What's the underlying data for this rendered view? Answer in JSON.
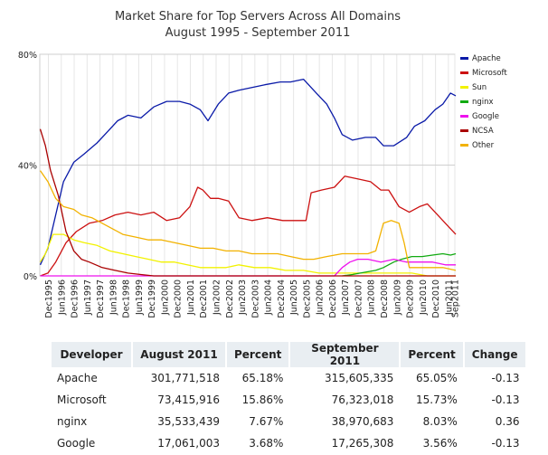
{
  "colors": {
    "Apache": "#0a1aa8",
    "Microsoft": "#cc1111",
    "Sun": "#f2f200",
    "nginx": "#11aa11",
    "Google": "#ee11ee",
    "NCSA": "#aa0000",
    "Other": "#f2b200",
    "grid": "#e6e6e6",
    "header_bg": "#e9eef2"
  },
  "chart_data": {
    "type": "line",
    "title": "Market Share for Top Servers Across All Domains",
    "subtitle": "August 1995 - September 2011",
    "x_ticks": [
      "Dec1995",
      "Jun1996",
      "Dec1996",
      "Jun1997",
      "Dec1997",
      "Jun1998",
      "Dec1998",
      "Jun1999",
      "Dec1999",
      "Jun2000",
      "Dec2000",
      "Jun2001",
      "Dec2001",
      "Jun2002",
      "Dec2002",
      "Jun2003",
      "Dec2003",
      "Jun2004",
      "Dec2004",
      "Jun2005",
      "Dec2005",
      "Jun2006",
      "Dec2006",
      "Jun2007",
      "Dec2007",
      "Jun2008",
      "Dec2008",
      "Jun2009",
      "Dec2009",
      "Jun2010",
      "Dec2010",
      "Jun2011",
      "Sep2011"
    ],
    "y_ticks": [
      "0%",
      "40%",
      "80%"
    ],
    "ylim": [
      0,
      80
    ],
    "xlim": [
      "Aug1995",
      "Sep2011"
    ],
    "grid": true,
    "legend_position": "right",
    "series": [
      {
        "name": "Apache",
        "points": [
          [
            1995.6,
            4
          ],
          [
            1995.9,
            10
          ],
          [
            1996.2,
            22
          ],
          [
            1996.5,
            34
          ],
          [
            1996.9,
            41
          ],
          [
            1997.3,
            44
          ],
          [
            1997.8,
            48
          ],
          [
            1998.2,
            52
          ],
          [
            1998.6,
            56
          ],
          [
            1999.0,
            58
          ],
          [
            1999.5,
            57
          ],
          [
            2000.0,
            61
          ],
          [
            2000.5,
            63
          ],
          [
            2001.0,
            63
          ],
          [
            2001.4,
            62
          ],
          [
            2001.8,
            60
          ],
          [
            2002.1,
            56
          ],
          [
            2002.5,
            62
          ],
          [
            2002.9,
            66
          ],
          [
            2003.3,
            67
          ],
          [
            2003.8,
            68
          ],
          [
            2004.3,
            69
          ],
          [
            2004.9,
            70
          ],
          [
            2005.3,
            70
          ],
          [
            2005.8,
            71
          ],
          [
            2006.3,
            66
          ],
          [
            2006.7,
            62
          ],
          [
            2007.0,
            57
          ],
          [
            2007.3,
            51
          ],
          [
            2007.7,
            49
          ],
          [
            2008.2,
            50
          ],
          [
            2008.6,
            50
          ],
          [
            2008.9,
            47
          ],
          [
            2009.3,
            47
          ],
          [
            2009.8,
            50
          ],
          [
            2010.1,
            54
          ],
          [
            2010.5,
            56
          ],
          [
            2010.9,
            60
          ],
          [
            2011.2,
            62
          ],
          [
            2011.5,
            66
          ],
          [
            2011.7,
            65
          ]
        ]
      },
      {
        "name": "Microsoft",
        "points": [
          [
            1995.6,
            0
          ],
          [
            1995.9,
            1
          ],
          [
            1996.2,
            5
          ],
          [
            1996.6,
            12
          ],
          [
            1997.0,
            16
          ],
          [
            1997.5,
            19
          ],
          [
            1998.0,
            20
          ],
          [
            1998.5,
            22
          ],
          [
            1999.0,
            23
          ],
          [
            1999.5,
            22
          ],
          [
            2000.0,
            23
          ],
          [
            2000.5,
            20
          ],
          [
            2001.0,
            21
          ],
          [
            2001.4,
            25
          ],
          [
            2001.7,
            32
          ],
          [
            2001.9,
            31
          ],
          [
            2002.2,
            28
          ],
          [
            2002.5,
            28
          ],
          [
            2002.9,
            27
          ],
          [
            2003.3,
            21
          ],
          [
            2003.8,
            20
          ],
          [
            2004.4,
            21
          ],
          [
            2005.0,
            20
          ],
          [
            2005.6,
            20
          ],
          [
            2005.9,
            20
          ],
          [
            2006.1,
            30
          ],
          [
            2006.5,
            31
          ],
          [
            2007.0,
            32
          ],
          [
            2007.4,
            36
          ],
          [
            2007.9,
            35
          ],
          [
            2008.4,
            34
          ],
          [
            2008.8,
            31
          ],
          [
            2009.1,
            31
          ],
          [
            2009.5,
            25
          ],
          [
            2009.9,
            23
          ],
          [
            2010.3,
            25
          ],
          [
            2010.6,
            26
          ],
          [
            2010.9,
            23
          ],
          [
            2011.2,
            20
          ],
          [
            2011.5,
            17
          ],
          [
            2011.7,
            15
          ]
        ]
      },
      {
        "name": "Sun",
        "points": [
          [
            1995.6,
            5
          ],
          [
            1995.8,
            8
          ],
          [
            1996.1,
            15
          ],
          [
            1996.5,
            15
          ],
          [
            1996.9,
            13
          ],
          [
            1997.3,
            12
          ],
          [
            1997.8,
            11
          ],
          [
            1998.3,
            9
          ],
          [
            1998.8,
            8
          ],
          [
            1999.3,
            7
          ],
          [
            1999.8,
            6
          ],
          [
            2000.3,
            5
          ],
          [
            2000.8,
            5
          ],
          [
            2001.3,
            4
          ],
          [
            2001.8,
            3
          ],
          [
            2002.3,
            3
          ],
          [
            2002.8,
            3
          ],
          [
            2003.3,
            4
          ],
          [
            2003.9,
            3
          ],
          [
            2004.5,
            3
          ],
          [
            2005.1,
            2
          ],
          [
            2005.8,
            2
          ],
          [
            2006.4,
            1
          ],
          [
            2007.0,
            1
          ],
          [
            2007.6,
            1
          ],
          [
            2008.2,
            1
          ],
          [
            2008.8,
            1
          ],
          [
            2009.4,
            1
          ],
          [
            2010.0,
            1
          ],
          [
            2010.6,
            0
          ],
          [
            2011.7,
            0
          ]
        ]
      },
      {
        "name": "nginx",
        "points": [
          [
            2007.3,
            0
          ],
          [
            2007.7,
            0.5
          ],
          [
            2008.0,
            1
          ],
          [
            2008.3,
            1.5
          ],
          [
            2008.6,
            2
          ],
          [
            2008.9,
            3
          ],
          [
            2009.3,
            5
          ],
          [
            2009.6,
            6
          ],
          [
            2010.0,
            7
          ],
          [
            2010.4,
            7
          ],
          [
            2010.8,
            7.5
          ],
          [
            2011.2,
            8
          ],
          [
            2011.5,
            7.5
          ],
          [
            2011.7,
            8
          ]
        ]
      },
      {
        "name": "Google",
        "points": [
          [
            1995.6,
            0
          ],
          [
            2007.0,
            0
          ],
          [
            2007.3,
            3
          ],
          [
            2007.6,
            5
          ],
          [
            2007.9,
            6
          ],
          [
            2008.3,
            6
          ],
          [
            2008.8,
            5
          ],
          [
            2009.3,
            6
          ],
          [
            2009.8,
            5
          ],
          [
            2010.3,
            5
          ],
          [
            2010.8,
            5
          ],
          [
            2011.3,
            4
          ],
          [
            2011.7,
            4
          ]
        ]
      },
      {
        "name": "NCSA",
        "points": [
          [
            1995.6,
            53
          ],
          [
            1995.8,
            47
          ],
          [
            1996.0,
            38
          ],
          [
            1996.3,
            29
          ],
          [
            1996.6,
            16
          ],
          [
            1996.9,
            9
          ],
          [
            1997.2,
            6
          ],
          [
            1997.5,
            5
          ],
          [
            1998.0,
            3
          ],
          [
            1998.5,
            2
          ],
          [
            1999.0,
            1
          ],
          [
            1999.5,
            0.5
          ],
          [
            2000.0,
            0
          ],
          [
            2011.7,
            0
          ]
        ]
      },
      {
        "name": "Other",
        "points": [
          [
            1995.6,
            38
          ],
          [
            1995.9,
            34
          ],
          [
            1996.2,
            28
          ],
          [
            1996.5,
            25
          ],
          [
            1996.9,
            24
          ],
          [
            1997.2,
            22
          ],
          [
            1997.6,
            21
          ],
          [
            1998.0,
            19
          ],
          [
            1998.4,
            17
          ],
          [
            1998.8,
            15
          ],
          [
            1999.3,
            14
          ],
          [
            1999.8,
            13
          ],
          [
            2000.3,
            13
          ],
          [
            2000.8,
            12
          ],
          [
            2001.3,
            11
          ],
          [
            2001.8,
            10
          ],
          [
            2002.3,
            10
          ],
          [
            2002.8,
            9
          ],
          [
            2003.3,
            9
          ],
          [
            2003.8,
            8
          ],
          [
            2004.3,
            8
          ],
          [
            2004.8,
            8
          ],
          [
            2005.3,
            7
          ],
          [
            2005.8,
            6
          ],
          [
            2006.2,
            6
          ],
          [
            2006.7,
            7
          ],
          [
            2007.3,
            8
          ],
          [
            2007.8,
            8
          ],
          [
            2008.3,
            8
          ],
          [
            2008.6,
            9
          ],
          [
            2008.9,
            19
          ],
          [
            2009.2,
            20
          ],
          [
            2009.5,
            19
          ],
          [
            2009.7,
            12
          ],
          [
            2009.9,
            3
          ],
          [
            2010.3,
            3
          ],
          [
            2010.8,
            3
          ],
          [
            2011.2,
            3
          ],
          [
            2011.7,
            2
          ]
        ]
      }
    ]
  },
  "table": {
    "headers": [
      "Developer",
      "August 2011",
      "Percent",
      "September 2011",
      "Percent",
      "Change"
    ],
    "rows": [
      [
        "Apache",
        "301,771,518",
        "65.18%",
        "315,605,335",
        "65.05%",
        "-0.13"
      ],
      [
        "Microsoft",
        "73,415,916",
        "15.86%",
        "76,323,018",
        "15.73%",
        "-0.13"
      ],
      [
        "nginx",
        "35,533,439",
        "7.67%",
        "38,970,683",
        "8.03%",
        "0.36"
      ],
      [
        "Google",
        "17,061,003",
        "3.68%",
        "17,265,308",
        "3.56%",
        "-0.13"
      ]
    ]
  }
}
